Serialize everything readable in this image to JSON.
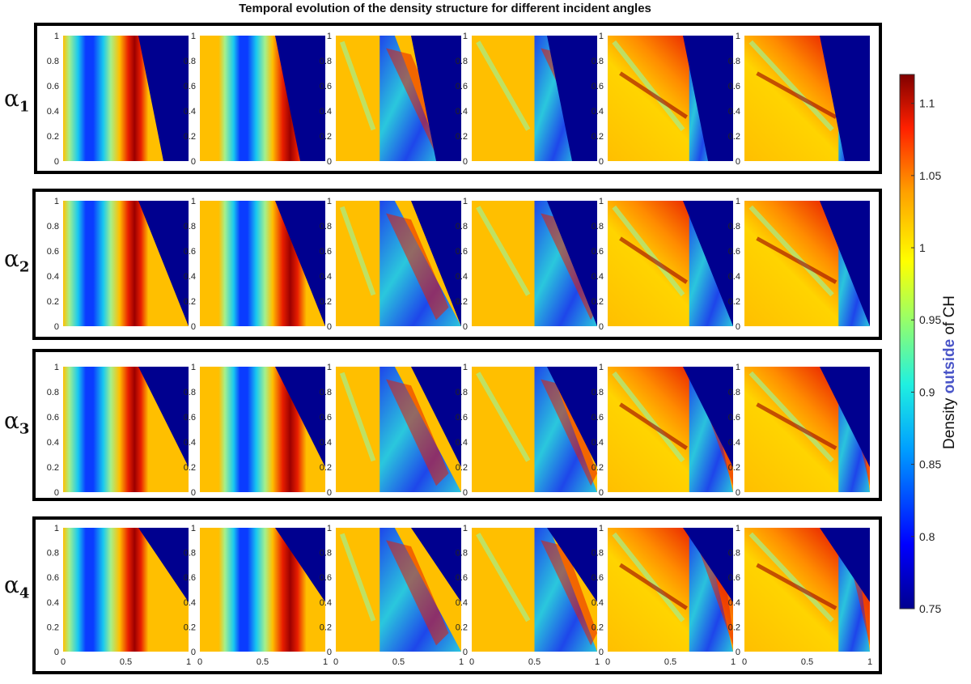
{
  "chart_data": {
    "type": "heatmap",
    "title": "Temporal evolution of the density structure for different incident angles",
    "rows": [
      {
        "label_base": "α",
        "label_sub": "1",
        "frame_color": "#1a7a1a"
      },
      {
        "label_base": "α",
        "label_sub": "2",
        "frame_color": "#6cd64a"
      },
      {
        "label_base": "α",
        "label_sub": "3",
        "frame_color": "#8fd56a"
      },
      {
        "label_base": "α",
        "label_sub": "4",
        "frame_color": "#c8eea8"
      }
    ],
    "panels_per_row": 6,
    "xlim": [
      0,
      1
    ],
    "ylim": [
      0,
      1
    ],
    "x_ticks": [
      "0",
      "0.5",
      "1"
    ],
    "y_ticks": [
      "0",
      "0.2",
      "0.4",
      "0.6",
      "0.8",
      "1"
    ],
    "colorbar": {
      "label_prefix": "Density ",
      "label_highlight": "outside",
      "label_suffix": " of CH",
      "min": 0.75,
      "max": 1.12,
      "ticks": [
        0.75,
        0.8,
        0.85,
        0.9,
        0.95,
        1,
        1.05,
        1.1
      ],
      "tick_labels": [
        "0.75",
        "0.8",
        "0.85",
        "0.9",
        "0.95",
        "1",
        "1.05",
        "1.1"
      ],
      "colormap": "jet"
    },
    "boundary_bottom_x": [
      0.8,
      1.0,
      1.0,
      1.0
    ],
    "boundary_top_x": 0.6,
    "front_x_by_panel": [
      0.55,
      0.7,
      0.85,
      0.5,
      0.65,
      0.75
    ]
  }
}
